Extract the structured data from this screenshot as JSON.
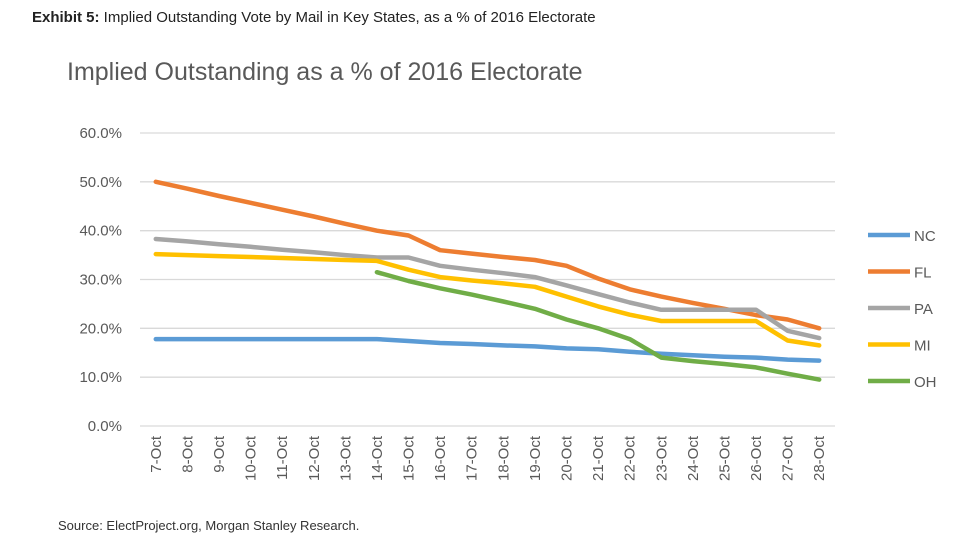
{
  "header": {
    "exhibit_label": "Exhibit 5:",
    "exhibit_text": " Implied Outstanding Vote by Mail in Key States, as a % of 2016 Electorate"
  },
  "footer": {
    "source": "Source: ElectProject.org, Morgan Stanley Research."
  },
  "chart_data": {
    "type": "line",
    "title": "Implied Outstanding as a % of 2016 Electorate",
    "xlabel": "",
    "ylabel": "",
    "ylim": [
      0,
      60
    ],
    "yticks": [
      "0.0%",
      "10.0%",
      "20.0%",
      "30.0%",
      "40.0%",
      "50.0%",
      "60.0%"
    ],
    "grid": true,
    "legend": "right",
    "categories": [
      "7-Oct",
      "8-Oct",
      "9-Oct",
      "10-Oct",
      "11-Oct",
      "12-Oct",
      "13-Oct",
      "14-Oct",
      "15-Oct",
      "16-Oct",
      "17-Oct",
      "18-Oct",
      "19-Oct",
      "20-Oct",
      "21-Oct",
      "22-Oct",
      "23-Oct",
      "24-Oct",
      "25-Oct",
      "26-Oct",
      "27-Oct",
      "28-Oct"
    ],
    "series": [
      {
        "name": "NC",
        "color": "#5B9BD5",
        "values": [
          17.8,
          17.8,
          17.8,
          17.8,
          17.8,
          17.8,
          17.8,
          17.8,
          17.4,
          17.0,
          16.8,
          16.5,
          16.3,
          15.9,
          15.7,
          15.2,
          14.8,
          14.5,
          14.2,
          14.0,
          13.6,
          13.4
        ]
      },
      {
        "name": "FL",
        "color": "#ED7D31",
        "values": [
          50.0,
          48.6,
          47.1,
          45.7,
          44.3,
          42.9,
          41.4,
          40.0,
          39.0,
          36.0,
          35.3,
          34.6,
          34.0,
          32.8,
          30.2,
          28.0,
          26.5,
          25.2,
          24.0,
          22.7,
          21.8,
          20.0
        ]
      },
      {
        "name": "PA",
        "color": "#A5A5A5",
        "values": [
          38.3,
          37.8,
          37.2,
          36.7,
          36.1,
          35.6,
          35.0,
          34.5,
          34.5,
          32.8,
          32.0,
          31.3,
          30.5,
          28.8,
          27.0,
          25.3,
          23.8,
          23.8,
          23.8,
          23.8,
          19.5,
          18.0
        ]
      },
      {
        "name": "MI",
        "color": "#FFC000",
        "values": [
          35.2,
          35.0,
          34.8,
          34.6,
          34.4,
          34.2,
          34.0,
          33.8,
          32.0,
          30.5,
          29.8,
          29.2,
          28.5,
          26.5,
          24.5,
          22.8,
          21.5,
          21.5,
          21.5,
          21.5,
          17.5,
          16.5
        ]
      },
      {
        "name": "OH",
        "color": "#70AD47",
        "values": [
          null,
          null,
          null,
          null,
          null,
          null,
          null,
          31.5,
          29.7,
          28.2,
          26.9,
          25.5,
          24.0,
          21.8,
          20.0,
          17.8,
          14.0,
          13.3,
          12.7,
          12.0,
          10.7,
          9.5
        ]
      }
    ]
  }
}
